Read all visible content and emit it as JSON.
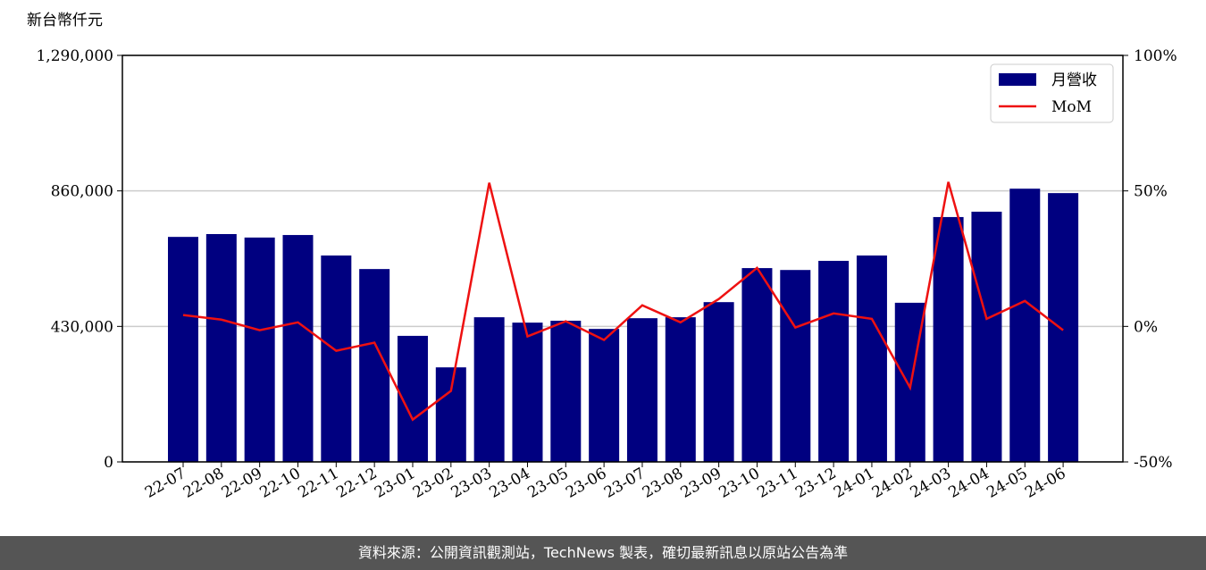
{
  "chart_data": {
    "type": "bar_line",
    "y_label": "新台幣仟元",
    "categories": [
      "22-07",
      "22-08",
      "22-09",
      "22-10",
      "22-11",
      "22-12",
      "23-01",
      "23-02",
      "23-03",
      "23-04",
      "23-05",
      "23-06",
      "23-07",
      "23-08",
      "23-09",
      "23-10",
      "23-11",
      "23-12",
      "24-01",
      "24-02",
      "24-03",
      "24-04",
      "24-05",
      "24-06"
    ],
    "series": [
      {
        "name": "月營收",
        "color": "#000080",
        "type": "bar",
        "values": [
          714000,
          723000,
          712000,
          720000,
          655000,
          612000,
          400000,
          300000,
          459000,
          442000,
          448000,
          422000,
          456000,
          459000,
          507000,
          615000,
          609000,
          638000,
          655000,
          505000,
          777000,
          794000,
          867000,
          853000
        ]
      },
      {
        "name": "MoM",
        "color": "#ee1111",
        "type": "line",
        "axis": "y2",
        "values": [
          4.2,
          2.5,
          -1.4,
          1.5,
          -9,
          -6,
          -34.4,
          -23.8,
          53,
          -3.7,
          1.9,
          -5,
          7.8,
          1.5,
          10.1,
          21.6,
          -0.4,
          4.8,
          2.8,
          -22.6,
          53.3,
          2.8,
          9.4,
          -1.4
        ]
      }
    ],
    "ylim": [
      0,
      1290000
    ],
    "yticks": [
      0,
      {
        "value": 430000,
        "label": "430,000"
      },
      {
        "value": 860000,
        "label": "860,000"
      },
      {
        "value": 1290000,
        "label": "1,290,000"
      }
    ],
    "y2lim": [
      -50,
      100
    ],
    "y2ticks": [
      {
        "value": -50,
        "label": "-50%"
      },
      {
        "value": 0,
        "label": "0%"
      },
      {
        "value": 50,
        "label": "50%"
      },
      {
        "value": 100,
        "label": "100%"
      }
    ],
    "grid": true,
    "legend": "upper right",
    "footer": "資料來源：公開資訊觀測站，TechNews 製表，確切最新訊息以原站公告為準"
  }
}
